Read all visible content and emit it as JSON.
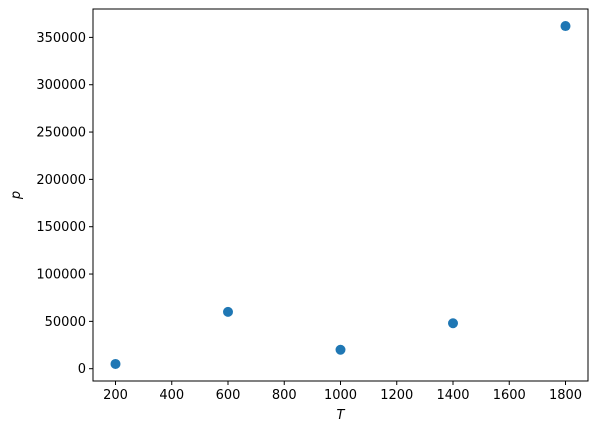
{
  "chart_data": {
    "type": "scatter",
    "title": "",
    "xlabel": "T",
    "ylabel": "p",
    "x": [
      200,
      600,
      1000,
      1400,
      1800
    ],
    "y": [
      5000,
      60000,
      20000,
      48000,
      362000
    ],
    "xlim": [
      120,
      1880
    ],
    "ylim": [
      -13000,
      380000
    ],
    "xticks": [
      200,
      400,
      600,
      800,
      1000,
      1200,
      1400,
      1600,
      1800
    ],
    "xtick_labels": [
      "200",
      "400",
      "600",
      "800",
      "1000",
      "1200",
      "1400",
      "1600",
      "1800"
    ],
    "yticks": [
      0,
      50000,
      100000,
      150000,
      200000,
      250000,
      300000,
      350000
    ],
    "ytick_labels": [
      "0",
      "50000",
      "100000",
      "150000",
      "200000",
      "250000",
      "300000",
      "350000"
    ],
    "grid": false,
    "marker_color": "#1f77b4"
  }
}
